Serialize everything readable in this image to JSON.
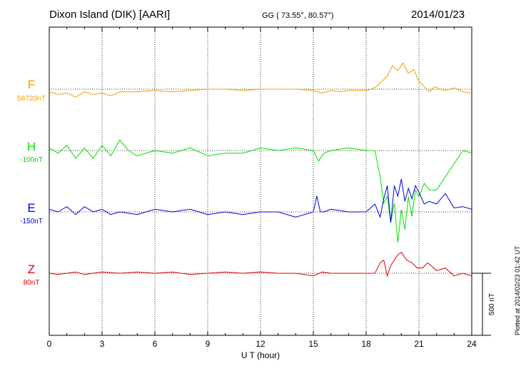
{
  "header": {
    "station": "Dixon Island (DIK)  [AARI]",
    "coords": "GG ( 73.55°,  80.57°)",
    "date": "2014/01/23"
  },
  "plotted_note": "Plotted at 2014/02/23 01:42 UT",
  "chart_data": {
    "type": "line",
    "title": "",
    "xlabel": "U T (hour)",
    "ylabel": "",
    "xlim": [
      0,
      24
    ],
    "x_ticks": [
      0,
      3,
      6,
      9,
      12,
      15,
      18,
      21,
      24
    ],
    "grid": true,
    "scale_bar": {
      "label": "500 nT",
      "value_nT": 500
    },
    "series": [
      {
        "name": "F",
        "baseline_label": "58720nT",
        "color": "#f0a000",
        "x": [
          0,
          0.5,
          1,
          1.5,
          2,
          2.5,
          3,
          3.5,
          4,
          5,
          6,
          7,
          8,
          9,
          10,
          11,
          12,
          13,
          14,
          15,
          15.5,
          16,
          16.5,
          17,
          17.5,
          18,
          18.3,
          18.6,
          18.9,
          19.2,
          19.5,
          19.8,
          20.1,
          20.4,
          20.7,
          21,
          21.3,
          21.6,
          21.9,
          22.2,
          22.5,
          23,
          23.5,
          24
        ],
        "values": [
          -20,
          -40,
          -30,
          -60,
          -20,
          -40,
          -30,
          -50,
          -20,
          -20,
          -10,
          -20,
          -10,
          0,
          0,
          -10,
          0,
          0,
          0,
          -10,
          -30,
          -10,
          -20,
          -10,
          -10,
          -10,
          0,
          20,
          60,
          100,
          180,
          140,
          200,
          120,
          150,
          60,
          20,
          -20,
          20,
          0,
          -10,
          10,
          -20,
          -30
        ]
      },
      {
        "name": "H",
        "baseline_label": "-100nT",
        "color": "#00e000",
        "x": [
          0,
          0.5,
          1,
          1.5,
          2,
          2.5,
          3,
          3.5,
          4,
          4.5,
          5,
          6,
          7,
          8,
          9,
          10,
          11,
          12,
          13,
          14,
          15,
          15.3,
          15.6,
          16,
          17,
          18,
          18.5,
          18.8,
          19,
          19.2,
          19.4,
          19.6,
          19.8,
          20,
          20.2,
          20.4,
          20.6,
          20.8,
          21,
          21.3,
          21.6,
          22,
          22.5,
          23,
          23.5,
          24
        ],
        "values": [
          20,
          -20,
          40,
          -60,
          20,
          -60,
          40,
          -40,
          80,
          0,
          -40,
          0,
          -20,
          20,
          -40,
          -20,
          -20,
          20,
          0,
          20,
          0,
          -80,
          -20,
          0,
          20,
          0,
          0,
          -200,
          -400,
          -350,
          -550,
          -400,
          -700,
          -450,
          -600,
          -350,
          -500,
          -300,
          -350,
          -250,
          -300,
          -300,
          -200,
          -100,
          0,
          -20
        ]
      },
      {
        "name": "E",
        "baseline_label": "-150nT",
        "color": "#0000e0",
        "x": [
          0,
          0.5,
          1,
          1.5,
          2,
          2.5,
          3,
          3.5,
          4,
          5,
          6,
          7,
          8,
          9,
          10,
          11,
          12,
          13,
          14,
          15,
          15.2,
          15.4,
          15.6,
          16,
          17,
          18,
          18.5,
          18.8,
          19,
          19.2,
          19.4,
          19.6,
          19.8,
          20,
          20.2,
          20.4,
          20.6,
          20.8,
          21,
          21.3,
          21.6,
          22,
          22.5,
          23,
          23.5,
          24
        ],
        "values": [
          20,
          0,
          40,
          -20,
          40,
          0,
          20,
          -20,
          0,
          -20,
          20,
          0,
          20,
          -20,
          0,
          -20,
          0,
          0,
          -40,
          0,
          120,
          0,
          0,
          20,
          0,
          0,
          60,
          -40,
          100,
          200,
          -80,
          200,
          120,
          250,
          80,
          180,
          100,
          200,
          150,
          60,
          80,
          60,
          140,
          30,
          40,
          20
        ]
      },
      {
        "name": "Z",
        "baseline_label": "80nT",
        "color": "#e00000",
        "x": [
          0,
          0.5,
          1,
          1.5,
          2,
          2.5,
          3,
          4,
          5,
          6,
          7,
          8,
          9,
          10,
          11,
          12,
          13,
          14,
          15,
          15.5,
          16,
          17,
          18,
          18.5,
          18.8,
          19,
          19.2,
          19.4,
          19.6,
          19.8,
          20,
          20.3,
          20.6,
          20.9,
          21.2,
          21.5,
          22,
          22.5,
          23,
          23.5,
          24
        ],
        "values": [
          0,
          -10,
          0,
          10,
          -10,
          0,
          10,
          0,
          10,
          0,
          10,
          -10,
          0,
          10,
          0,
          10,
          0,
          0,
          -20,
          10,
          0,
          0,
          0,
          0,
          80,
          100,
          -20,
          60,
          100,
          140,
          160,
          100,
          80,
          40,
          40,
          80,
          20,
          40,
          -20,
          0,
          -20
        ]
      }
    ]
  }
}
